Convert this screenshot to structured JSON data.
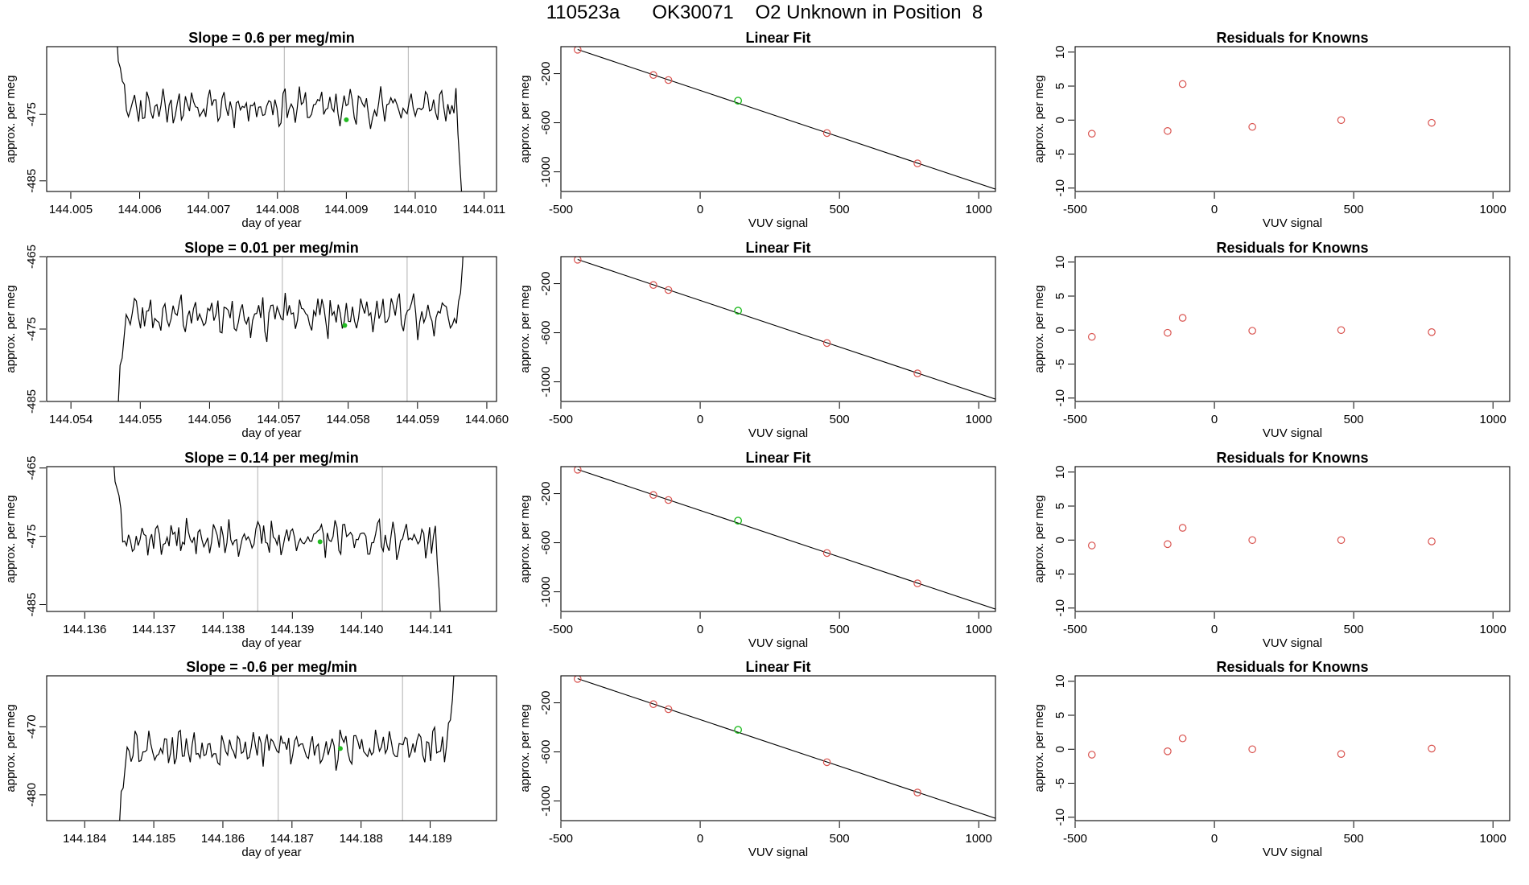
{
  "page": {
    "title": "110523a      OK30071    O2 Unknown in Position  8"
  },
  "colors": {
    "line": "#000000",
    "frame": "#000000",
    "vline": "#bebebe",
    "known": "#d9534f",
    "unknown": "#22bb22"
  },
  "chart_data": [
    {
      "type": "line",
      "title": "Slope =  0.6  per meg/min",
      "xlabel": "day of year",
      "ylabel": "approx. per meg",
      "xlim": [
        144.00465,
        144.01118
      ],
      "ylim": [
        -486.6,
        -464.8
      ],
      "x_ticks": [
        144.005,
        144.006,
        144.007,
        144.008,
        144.009,
        144.01,
        144.011
      ],
      "x_tick_labels": [
        "144.005",
        "144.006",
        "144.007",
        "144.008",
        "144.009",
        "144.010",
        "144.011"
      ],
      "y_ticks": [
        -475,
        -485
      ],
      "y_tick_labels": [
        "-475",
        "-485"
      ],
      "start": 144.00566,
      "end": 144.01068,
      "baseline": -473.8,
      "amp": 2.4,
      "seed": 11,
      "head": [
        -462,
        -467,
        -468,
        -470,
        -470.5
      ],
      "tail": [
        -478,
        -483,
        -488
      ],
      "vlines": [
        144.0081,
        144.0099
      ],
      "marker": [
        144.009,
        -475.8
      ]
    },
    {
      "type": "line",
      "title": "Slope =  0.01  per meg/min",
      "xlabel": "day of year",
      "ylabel": "approx. per meg",
      "xlim": [
        144.05365,
        144.06014
      ],
      "ylim": [
        -485,
        -465
      ],
      "x_ticks": [
        144.054,
        144.055,
        144.056,
        144.057,
        144.058,
        144.059,
        144.06
      ],
      "x_tick_labels": [
        "144.054",
        "144.055",
        "144.056",
        "144.057",
        "144.058",
        "144.059",
        "144.060"
      ],
      "y_ticks": [
        -465,
        -475,
        -485
      ],
      "y_tick_labels": [
        "-465",
        "-475",
        "-485"
      ],
      "start": 144.05468,
      "end": 144.05968,
      "baseline": -473.0,
      "amp": 2.6,
      "seed": 23,
      "head": [
        -486,
        -480,
        -479,
        -476,
        -473
      ],
      "tail": [
        -470,
        -466,
        -460
      ],
      "vlines": [
        144.05705,
        144.05885
      ],
      "marker": [
        144.05795,
        -474.5
      ]
    },
    {
      "type": "line",
      "title": "Slope =  0.14  per meg/min",
      "xlabel": "day of year",
      "ylabel": "approx. per meg",
      "xlim": [
        144.13545,
        144.14195
      ],
      "ylim": [
        -486,
        -464.8
      ],
      "x_ticks": [
        144.136,
        144.137,
        144.138,
        144.139,
        144.14,
        144.141
      ],
      "x_tick_labels": [
        "144.136",
        "144.137",
        "144.138",
        "144.139",
        "144.140",
        "144.141"
      ],
      "y_ticks": [
        -465,
        -475,
        -485
      ],
      "y_tick_labels": [
        "-465",
        "-475",
        "-485"
      ],
      "start": 144.13641,
      "end": 144.14115,
      "baseline": -475.3,
      "amp": 2.3,
      "seed": 37,
      "head": [
        -463,
        -467,
        -468,
        -469,
        -471
      ],
      "tail": [
        -479,
        -483,
        -489
      ],
      "vlines": [
        144.1385,
        144.1403
      ],
      "marker": [
        144.1394,
        -475.8
      ]
    },
    {
      "type": "line",
      "title": "Slope =  -0.6  per meg/min",
      "xlabel": "day of year",
      "ylabel": "approx. per meg",
      "xlim": [
        144.18345,
        144.18996
      ],
      "ylim": [
        -483.8,
        -462.5
      ],
      "x_ticks": [
        144.184,
        144.185,
        144.186,
        144.187,
        144.188,
        144.189
      ],
      "x_tick_labels": [
        "144.184",
        "144.185",
        "144.186",
        "144.187",
        "144.188",
        "144.189"
      ],
      "y_ticks": [
        -470,
        -480
      ],
      "y_tick_labels": [
        "-470",
        "-480"
      ],
      "start": 144.1845,
      "end": 144.18935,
      "baseline": -473.0,
      "amp": 2.4,
      "seed": 53,
      "head": [
        -485,
        -479.5,
        -479,
        -476,
        -473
      ],
      "tail": [
        -469,
        -466,
        -461
      ],
      "vlines": [
        144.1868,
        144.1886
      ],
      "marker": [
        144.1877,
        -473.2
      ]
    },
    {
      "type": "scatter",
      "title": "Linear Fit",
      "xlabel": "VUV signal",
      "ylabel": "approx. per meg",
      "xlim": [
        -500,
        1060
      ],
      "ylim": [
        -1160,
        20
      ],
      "x_ticks": [
        -500,
        0,
        500,
        1000
      ],
      "x_tick_labels": [
        "-500",
        "0",
        "500",
        "1000"
      ],
      "y_ticks": [
        -200,
        -600,
        -1000
      ],
      "y_tick_labels": [
        "-200",
        "-600",
        "-1000"
      ],
      "fit_line": [
        [
          -440,
          -3
        ],
        [
          1060,
          -1141
        ]
      ],
      "known_points": [
        [
          -440,
          -5
        ],
        [
          -168,
          -211
        ],
        [
          -114,
          -252
        ],
        [
          455,
          -684
        ],
        [
          780,
          -931
        ]
      ],
      "unknown_point": [
        136,
        -420
      ]
    },
    {
      "type": "scatter",
      "title": "Linear Fit",
      "xlabel": "VUV signal",
      "ylabel": "approx. per meg",
      "xlim": [
        -500,
        1060
      ],
      "ylim": [
        -1160,
        20
      ],
      "x_ticks": [
        -500,
        0,
        500,
        1000
      ],
      "x_tick_labels": [
        "-500",
        "0",
        "500",
        "1000"
      ],
      "y_ticks": [
        -200,
        -600,
        -1000
      ],
      "y_tick_labels": [
        "-200",
        "-600",
        "-1000"
      ],
      "fit_line": [
        [
          -440,
          -3
        ],
        [
          1060,
          -1141
        ]
      ],
      "known_points": [
        [
          -440,
          -5
        ],
        [
          -168,
          -211
        ],
        [
          -114,
          -252
        ],
        [
          455,
          -684
        ],
        [
          780,
          -931
        ]
      ],
      "unknown_point": [
        136,
        -420
      ]
    },
    {
      "type": "scatter",
      "title": "Linear Fit",
      "xlabel": "VUV signal",
      "ylabel": "approx. per meg",
      "xlim": [
        -500,
        1060
      ],
      "ylim": [
        -1160,
        20
      ],
      "x_ticks": [
        -500,
        0,
        500,
        1000
      ],
      "x_tick_labels": [
        "-500",
        "0",
        "500",
        "1000"
      ],
      "y_ticks": [
        -200,
        -600,
        -1000
      ],
      "y_tick_labels": [
        "-200",
        "-600",
        "-1000"
      ],
      "fit_line": [
        [
          -440,
          -3
        ],
        [
          1060,
          -1141
        ]
      ],
      "known_points": [
        [
          -440,
          -5
        ],
        [
          -168,
          -211
        ],
        [
          -114,
          -252
        ],
        [
          455,
          -684
        ],
        [
          780,
          -931
        ]
      ],
      "unknown_point": [
        136,
        -420
      ]
    },
    {
      "type": "scatter",
      "title": "Linear Fit",
      "xlabel": "VUV signal",
      "ylabel": "approx. per meg",
      "xlim": [
        -500,
        1060
      ],
      "ylim": [
        -1160,
        20
      ],
      "x_ticks": [
        -500,
        0,
        500,
        1000
      ],
      "x_tick_labels": [
        "-500",
        "0",
        "500",
        "1000"
      ],
      "y_ticks": [
        -200,
        -600,
        -1000
      ],
      "y_tick_labels": [
        "-200",
        "-600",
        "-1000"
      ],
      "fit_line": [
        [
          -440,
          -3
        ],
        [
          1060,
          -1141
        ]
      ],
      "known_points": [
        [
          -440,
          -5
        ],
        [
          -168,
          -211
        ],
        [
          -114,
          -252
        ],
        [
          455,
          -684
        ],
        [
          780,
          -931
        ]
      ],
      "unknown_point": [
        136,
        -420
      ]
    },
    {
      "type": "scatter",
      "title": "Residuals for Knowns",
      "xlabel": "VUV signal",
      "ylabel": "approx. per meg",
      "xlim": [
        -500,
        1060
      ],
      "ylim": [
        -10.5,
        10.8
      ],
      "x_ticks": [
        -500,
        0,
        500,
        1000
      ],
      "x_tick_labels": [
        "-500",
        "0",
        "500",
        "1000"
      ],
      "y_ticks": [
        10,
        5,
        0,
        -5,
        -10
      ],
      "y_tick_labels": [
        "10",
        "5",
        "0",
        "-5",
        "-10"
      ],
      "points": [
        [
          -440,
          -2.0
        ],
        [
          -168,
          -1.6
        ],
        [
          -114,
          5.3
        ],
        [
          136,
          -1.0
        ],
        [
          455,
          0.0
        ],
        [
          780,
          -0.4
        ]
      ]
    },
    {
      "type": "scatter",
      "title": "Residuals for Knowns",
      "xlabel": "VUV signal",
      "ylabel": "approx. per meg",
      "xlim": [
        -500,
        1060
      ],
      "ylim": [
        -10.5,
        10.8
      ],
      "x_ticks": [
        -500,
        0,
        500,
        1000
      ],
      "x_tick_labels": [
        "-500",
        "0",
        "500",
        "1000"
      ],
      "y_ticks": [
        10,
        5,
        0,
        -5,
        -10
      ],
      "y_tick_labels": [
        "10",
        "5",
        "0",
        "-5",
        "-10"
      ],
      "points": [
        [
          -440,
          -1.0
        ],
        [
          -168,
          -0.4
        ],
        [
          -114,
          1.8
        ],
        [
          136,
          -0.1
        ],
        [
          455,
          0.0
        ],
        [
          780,
          -0.3
        ]
      ]
    },
    {
      "type": "scatter",
      "title": "Residuals for Knowns",
      "xlabel": "VUV signal",
      "ylabel": "approx. per meg",
      "xlim": [
        -500,
        1060
      ],
      "ylim": [
        -10.5,
        10.8
      ],
      "x_ticks": [
        -500,
        0,
        500,
        1000
      ],
      "x_tick_labels": [
        "-500",
        "0",
        "500",
        "1000"
      ],
      "y_ticks": [
        10,
        5,
        0,
        -5,
        -10
      ],
      "y_tick_labels": [
        "10",
        "5",
        "0",
        "-5",
        "-10"
      ],
      "points": [
        [
          -440,
          -0.8
        ],
        [
          -168,
          -0.6
        ],
        [
          -114,
          1.8
        ],
        [
          136,
          0.0
        ],
        [
          455,
          0.0
        ],
        [
          780,
          -0.2
        ]
      ]
    },
    {
      "type": "scatter",
      "title": "Residuals for Knowns",
      "xlabel": "VUV signal",
      "ylabel": "approx. per meg",
      "xlim": [
        -500,
        1060
      ],
      "ylim": [
        -10.5,
        10.8
      ],
      "x_ticks": [
        -500,
        0,
        500,
        1000
      ],
      "x_tick_labels": [
        "-500",
        "0",
        "500",
        "1000"
      ],
      "y_ticks": [
        10,
        5,
        0,
        -5,
        -10
      ],
      "y_tick_labels": [
        "10",
        "5",
        "0",
        "-5",
        "-10"
      ],
      "points": [
        [
          -440,
          -0.8
        ],
        [
          -168,
          -0.3
        ],
        [
          -114,
          1.6
        ],
        [
          136,
          0.0
        ],
        [
          455,
          -0.7
        ],
        [
          780,
          0.1
        ]
      ]
    }
  ]
}
